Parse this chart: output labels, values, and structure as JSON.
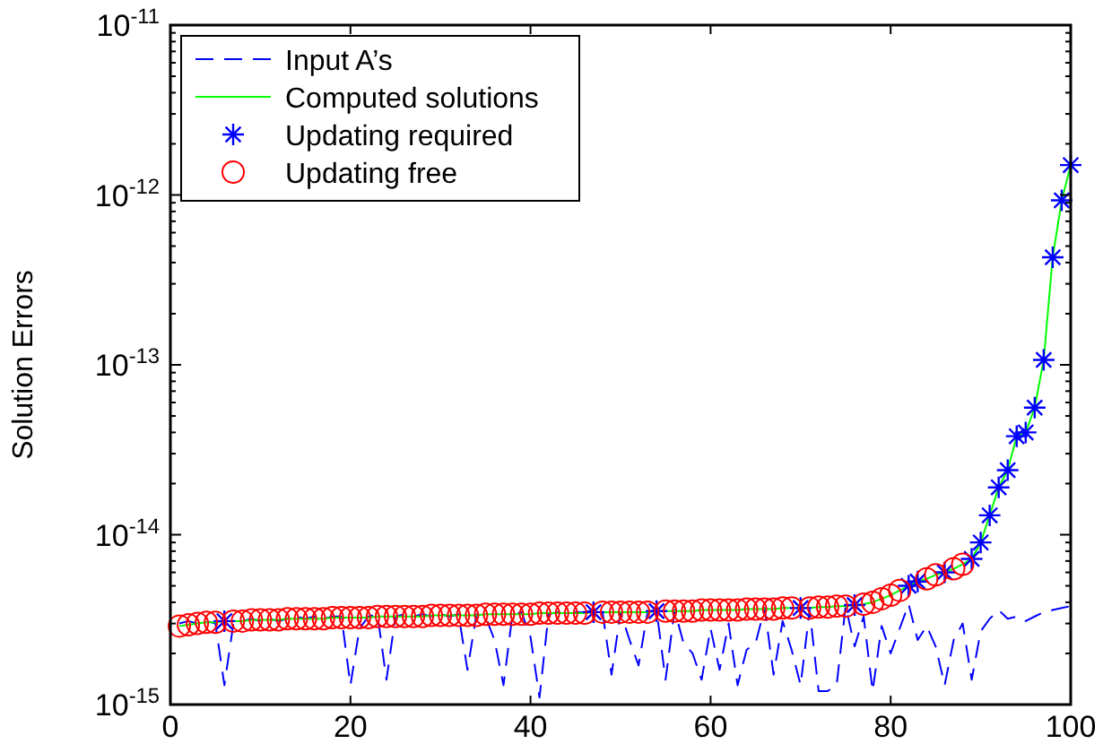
{
  "chart_data": {
    "type": "line",
    "ylabel": "Solution Errors",
    "log": "y",
    "grid": false,
    "legend": "top left",
    "xlim": [
      0,
      100
    ],
    "xticks": [
      0,
      20,
      40,
      60,
      80,
      100
    ],
    "ylim": [
      1e-15,
      1e-11
    ],
    "yticks": [
      {
        "value": 1e-15,
        "label": "10$^{-15}$"
      },
      {
        "value": 2e-15,
        "label": null
      },
      {
        "value": 3e-15,
        "label": null
      },
      {
        "value": 4e-15,
        "label": null
      },
      {
        "value": 5e-15,
        "label": null
      },
      {
        "value": 6e-15,
        "label": null
      },
      {
        "value": 7e-15,
        "label": null
      },
      {
        "value": 8e-15,
        "label": null
      },
      {
        "value": 9e-15,
        "label": null
      },
      {
        "value": 1e-14,
        "label": "10$^{-14}$"
      },
      {
        "value": 2e-14,
        "label": null
      },
      {
        "value": 3e-14,
        "label": null
      },
      {
        "value": 4e-14,
        "label": null
      },
      {
        "value": 5e-14,
        "label": null
      },
      {
        "value": 6e-14,
        "label": null
      },
      {
        "value": 7e-14,
        "label": null
      },
      {
        "value": 8e-14,
        "label": null
      },
      {
        "value": 9e-14,
        "label": null
      },
      {
        "value": 1e-13,
        "label": "10$^{-13}$"
      },
      {
        "value": 2e-13,
        "label": null
      },
      {
        "value": 3e-13,
        "label": null
      },
      {
        "value": 4e-13,
        "label": null
      },
      {
        "value": 5e-13,
        "label": null
      },
      {
        "value": 6e-13,
        "label": null
      },
      {
        "value": 7e-13,
        "label": null
      },
      {
        "value": 8e-13,
        "label": null
      },
      {
        "value": 9e-13,
        "label": null
      },
      {
        "value": 1e-12,
        "label": "10$^{-12}$"
      },
      {
        "value": 2e-12,
        "label": null
      },
      {
        "value": 3e-12,
        "label": null
      },
      {
        "value": 4e-12,
        "label": null
      },
      {
        "value": 5e-12,
        "label": null
      },
      {
        "value": 6e-12,
        "label": null
      },
      {
        "value": 7e-12,
        "label": null
      },
      {
        "value": 8e-12,
        "label": null
      },
      {
        "value": 9e-12,
        "label": null
      },
      {
        "value": 1e-11,
        "label": "10$^{-11}$"
      }
    ],
    "series": [
      {
        "name": "Input A’s",
        "color": "#0000ff",
        "line_style": "dashed",
        "marker": "none",
        "x": [
          1,
          2,
          3,
          4,
          5,
          6,
          7,
          8,
          9,
          10,
          11,
          12,
          13,
          14,
          15,
          16,
          17,
          18,
          19,
          20,
          21,
          22,
          23,
          24,
          25,
          26,
          27,
          28,
          29,
          30,
          31,
          32,
          33,
          34,
          35,
          36,
          37,
          38,
          39,
          40,
          41,
          42,
          43,
          44,
          45,
          46,
          47,
          48,
          49,
          50,
          51,
          52,
          53,
          54,
          55,
          56,
          57,
          58,
          59,
          60,
          61,
          62,
          63,
          64,
          65,
          66,
          67,
          68,
          69,
          70,
          71,
          72,
          73,
          74,
          75,
          76,
          77,
          78,
          79,
          80,
          81,
          82,
          83,
          84,
          85,
          86,
          87,
          88,
          89,
          90,
          91,
          92,
          93,
          94,
          95,
          96,
          97,
          98,
          99,
          100
        ],
        "values": [
          3e-15,
          3.1e-15,
          3e-15,
          3.1e-15,
          3e-15,
          1.3e-15,
          3e-15,
          3.1e-15,
          3.2e-15,
          3.1e-15,
          3.2e-15,
          3.1e-15,
          3.2e-15,
          3.3e-15,
          3.2e-15,
          3.3e-15,
          3.2e-15,
          3.3e-15,
          3.3e-15,
          1.3e-15,
          2.8e-15,
          3.3e-15,
          3.4e-15,
          1.4e-15,
          3.3e-15,
          3.4e-15,
          3.3e-15,
          3.4e-15,
          3.3e-15,
          3.4e-15,
          3.3e-15,
          3.4e-15,
          1.6e-15,
          3.4e-15,
          3.3e-15,
          2.4e-15,
          1.3e-15,
          3.4e-15,
          3.5e-15,
          2.5e-15,
          1.1e-15,
          3.4e-15,
          3.5e-15,
          3.4e-15,
          3.5e-15,
          3.5e-15,
          3.6e-15,
          3.5e-15,
          1.5e-15,
          3.5e-15,
          2.4e-15,
          1.7e-15,
          3.5e-15,
          3.6e-15,
          1.4e-15,
          3.6e-15,
          2.3e-15,
          2e-15,
          1.4e-15,
          2.8e-15,
          1.6e-15,
          3e-15,
          1.3e-15,
          2.1e-15,
          2.3e-15,
          3.7e-15,
          1.5e-15,
          3.1e-15,
          2.1e-15,
          1.3e-15,
          3.6e-15,
          1.2e-15,
          1.2e-15,
          1.3e-15,
          3.8e-15,
          2.2e-15,
          3.3e-15,
          1.2e-15,
          2.9e-15,
          2e-15,
          2.8e-15,
          3.9e-15,
          2.4e-15,
          2.9e-15,
          2.2e-15,
          1.3e-15,
          2.4e-15,
          3e-15,
          1.4e-15,
          2.7e-15,
          3.2e-15,
          3.6e-15,
          3.2e-15,
          3.3e-15,
          3.1e-15,
          3.3e-15,
          3.5e-15,
          3.6e-15,
          3.7e-15,
          3.8e-15
        ]
      },
      {
        "name": "Computed solutions",
        "color": "#00ff00",
        "line_style": "solid",
        "marker": "none",
        "x": [
          1,
          2,
          3,
          4,
          5,
          6,
          7,
          8,
          9,
          10,
          11,
          12,
          13,
          14,
          15,
          16,
          17,
          18,
          19,
          20,
          21,
          22,
          23,
          24,
          25,
          26,
          27,
          28,
          29,
          30,
          31,
          32,
          33,
          34,
          35,
          36,
          37,
          38,
          39,
          40,
          41,
          42,
          43,
          44,
          45,
          46,
          47,
          48,
          49,
          50,
          51,
          52,
          53,
          54,
          55,
          56,
          57,
          58,
          59,
          60,
          61,
          62,
          63,
          64,
          65,
          66,
          67,
          68,
          69,
          70,
          71,
          72,
          73,
          74,
          75,
          76,
          77,
          78,
          79,
          80,
          81,
          82,
          83,
          84,
          85,
          86,
          87,
          88,
          89,
          90,
          91,
          92,
          93,
          94,
          95,
          96,
          97,
          98,
          99,
          100
        ],
        "values": [
          2.9e-15,
          2.95e-15,
          3e-15,
          3.05e-15,
          3.05e-15,
          3.1e-15,
          3.1e-15,
          3.1e-15,
          3.15e-15,
          3.15e-15,
          3.15e-15,
          3.15e-15,
          3.2e-15,
          3.2e-15,
          3.2e-15,
          3.2e-15,
          3.2e-15,
          3.25e-15,
          3.25e-15,
          3.25e-15,
          3.25e-15,
          3.25e-15,
          3.3e-15,
          3.3e-15,
          3.3e-15,
          3.3e-15,
          3.3e-15,
          3.3e-15,
          3.35e-15,
          3.35e-15,
          3.35e-15,
          3.35e-15,
          3.35e-15,
          3.35e-15,
          3.4e-15,
          3.4e-15,
          3.4e-15,
          3.4e-15,
          3.4e-15,
          3.4e-15,
          3.45e-15,
          3.45e-15,
          3.45e-15,
          3.45e-15,
          3.45e-15,
          3.45e-15,
          3.5e-15,
          3.5e-15,
          3.5e-15,
          3.5e-15,
          3.5e-15,
          3.5e-15,
          3.5e-15,
          3.55e-15,
          3.55e-15,
          3.55e-15,
          3.55e-15,
          3.55e-15,
          3.6e-15,
          3.6e-15,
          3.6e-15,
          3.6e-15,
          3.6e-15,
          3.65e-15,
          3.65e-15,
          3.65e-15,
          3.65e-15,
          3.7e-15,
          3.7e-15,
          3.7e-15,
          3.7e-15,
          3.75e-15,
          3.75e-15,
          3.8e-15,
          3.8e-15,
          3.85e-15,
          3.9e-15,
          4e-15,
          4.2e-15,
          4.4e-15,
          4.7e-15,
          5e-15,
          5.3e-15,
          5.5e-15,
          5.8e-15,
          6e-15,
          6.3e-15,
          6.7e-15,
          7.2e-15,
          9e-15,
          1.3e-14,
          1.9e-14,
          2.4e-14,
          3.8e-14,
          4e-14,
          5.6e-14,
          1.07e-13,
          4.3e-13,
          9.3e-13,
          1.5e-12
        ]
      },
      {
        "name": "Updating required",
        "type": "scatter",
        "color": "#0000ff",
        "marker": "cross",
        "x": [
          6,
          47,
          54,
          70,
          76,
          82,
          83,
          86,
          89,
          90,
          91,
          92,
          93,
          94,
          95,
          96,
          97,
          98,
          99,
          100
        ],
        "values": [
          3.1e-15,
          3.5e-15,
          3.55e-15,
          3.7e-15,
          3.85e-15,
          5e-15,
          5.3e-15,
          6e-15,
          7.2e-15,
          9e-15,
          1.3e-14,
          1.9e-14,
          2.4e-14,
          3.8e-14,
          4e-14,
          5.6e-14,
          1.07e-13,
          4.3e-13,
          9.3e-13,
          1.5e-12
        ]
      },
      {
        "name": "Updating free",
        "type": "scatter",
        "color": "#ff0000",
        "marker": "circle",
        "x": [
          1,
          2,
          3,
          4,
          5,
          7,
          8,
          9,
          10,
          11,
          12,
          13,
          14,
          15,
          16,
          17,
          18,
          19,
          20,
          21,
          22,
          23,
          24,
          25,
          26,
          27,
          28,
          29,
          30,
          31,
          32,
          33,
          34,
          35,
          36,
          37,
          38,
          39,
          40,
          41,
          42,
          43,
          44,
          45,
          46,
          48,
          49,
          50,
          51,
          52,
          53,
          55,
          56,
          57,
          58,
          59,
          60,
          61,
          62,
          63,
          64,
          65,
          66,
          67,
          68,
          69,
          71,
          72,
          73,
          74,
          75,
          77,
          78,
          79,
          80,
          81,
          84,
          85,
          87,
          88
        ],
        "values": [
          2.9e-15,
          2.95e-15,
          3e-15,
          3.05e-15,
          3.05e-15,
          3.1e-15,
          3.1e-15,
          3.15e-15,
          3.15e-15,
          3.15e-15,
          3.15e-15,
          3.2e-15,
          3.2e-15,
          3.2e-15,
          3.2e-15,
          3.2e-15,
          3.25e-15,
          3.25e-15,
          3.25e-15,
          3.25e-15,
          3.25e-15,
          3.3e-15,
          3.3e-15,
          3.3e-15,
          3.3e-15,
          3.3e-15,
          3.3e-15,
          3.35e-15,
          3.35e-15,
          3.35e-15,
          3.35e-15,
          3.35e-15,
          3.35e-15,
          3.4e-15,
          3.4e-15,
          3.4e-15,
          3.4e-15,
          3.4e-15,
          3.4e-15,
          3.45e-15,
          3.45e-15,
          3.45e-15,
          3.45e-15,
          3.45e-15,
          3.45e-15,
          3.5e-15,
          3.5e-15,
          3.5e-15,
          3.5e-15,
          3.5e-15,
          3.5e-15,
          3.55e-15,
          3.55e-15,
          3.55e-15,
          3.55e-15,
          3.6e-15,
          3.6e-15,
          3.6e-15,
          3.6e-15,
          3.6e-15,
          3.65e-15,
          3.65e-15,
          3.65e-15,
          3.65e-15,
          3.7e-15,
          3.7e-15,
          3.7e-15,
          3.75e-15,
          3.75e-15,
          3.8e-15,
          3.8e-15,
          3.9e-15,
          4e-15,
          4.2e-15,
          4.4e-15,
          4.7e-15,
          5.5e-15,
          5.8e-15,
          6.3e-15,
          6.7e-15
        ]
      }
    ]
  }
}
